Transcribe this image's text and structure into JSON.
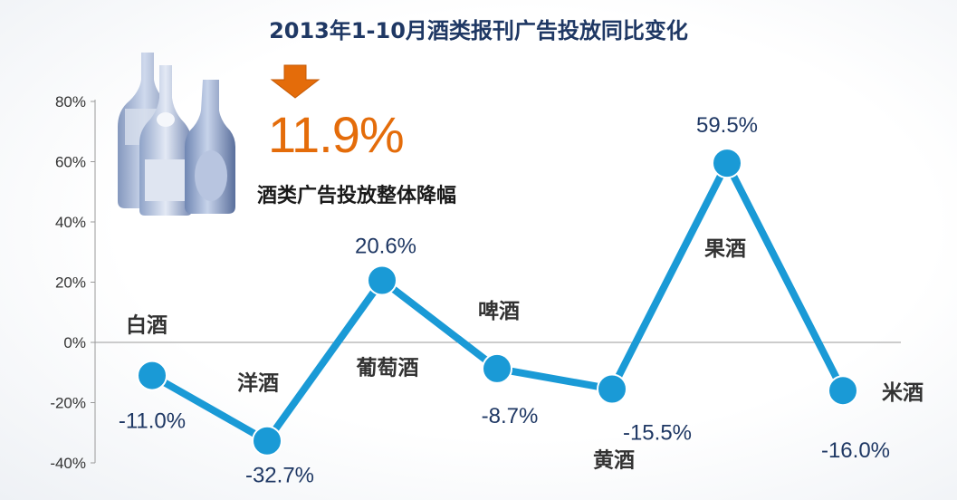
{
  "title": "2013年1-10月酒类报刊广告投放同比变化",
  "headline": {
    "value": "11.9%",
    "caption": "酒类广告投放整体降幅",
    "icon": "down-arrow-icon",
    "color": "#e46c0a"
  },
  "illustration": "wine-bottles-icon",
  "chart_data": {
    "type": "line",
    "categories": [
      "白酒",
      "洋酒",
      "葡萄酒",
      "啤酒",
      "黄酒",
      "果酒",
      "米酒"
    ],
    "series": [
      {
        "values": [
          -11.0,
          -32.7,
          20.6,
          -8.7,
          -15.5,
          59.5,
          -16.0
        ],
        "labels": [
          "-11.0%",
          "-32.7%",
          "20.6%",
          "-8.7%",
          "-15.5%",
          "59.5%",
          "-16.0%"
        ]
      }
    ],
    "ylim": [
      -40,
      80
    ],
    "yticks": [
      80,
      60,
      40,
      20,
      0,
      -20,
      -40
    ],
    "ytick_labels": [
      "80%",
      "60%",
      "40%",
      "20%",
      "0%",
      "-20%",
      "-40%"
    ],
    "line_color": "#1a9ad6",
    "grid": false
  }
}
